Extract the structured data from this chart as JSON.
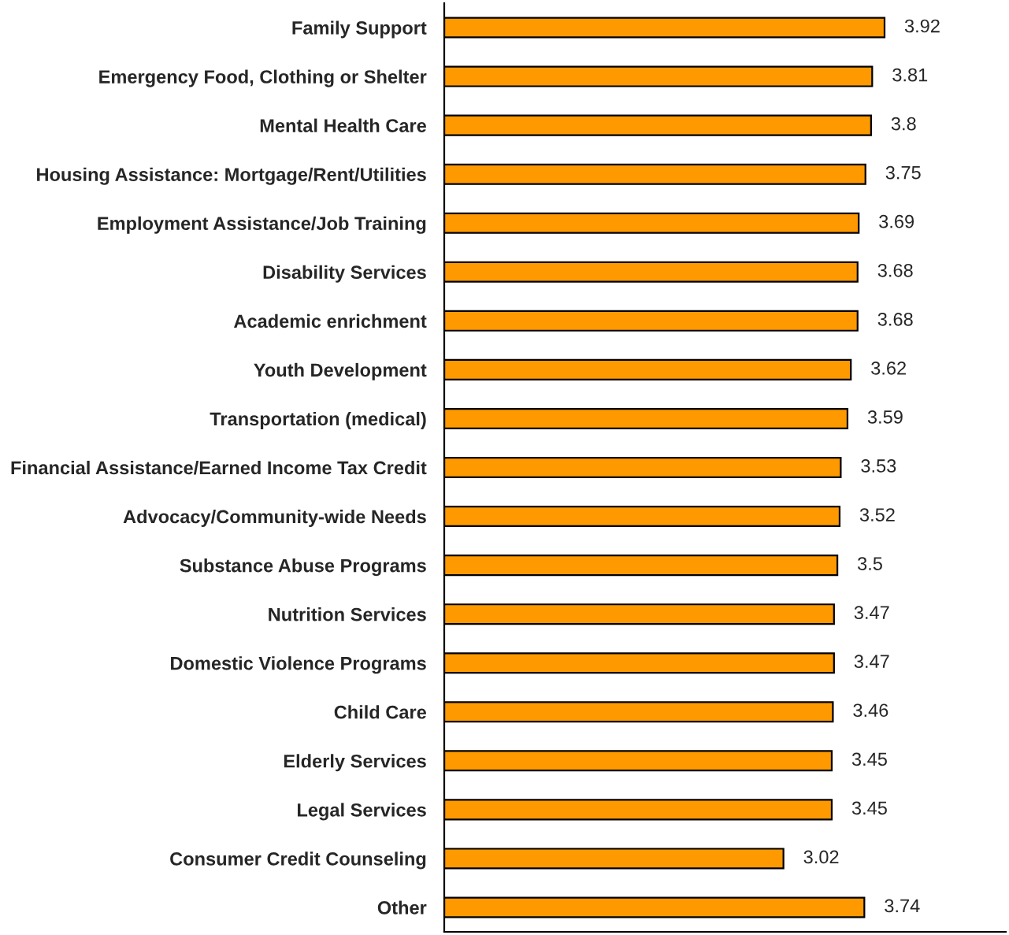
{
  "chart_data": {
    "type": "bar",
    "orientation": "horizontal",
    "categories": [
      "Family Support",
      "Emergency Food, Clothing or Shelter",
      "Mental Health Care",
      "Housing Assistance: Mortgage/Rent/Utilities",
      "Employment Assistance/Job Training",
      "Disability Services",
      "Academic enrichment",
      "Youth Development",
      "Transportation (medical)",
      "Financial Assistance/Earned Income Tax Credit",
      "Advocacy/Community-wide Needs",
      "Substance Abuse Programs",
      "Nutrition Services",
      "Domestic Violence Programs",
      "Child Care",
      "Elderly Services",
      "Legal Services",
      "Consumer Credit Counseling",
      "Other"
    ],
    "values": [
      3.92,
      3.81,
      3.8,
      3.75,
      3.69,
      3.68,
      3.68,
      3.62,
      3.59,
      3.53,
      3.52,
      3.5,
      3.47,
      3.47,
      3.46,
      3.45,
      3.45,
      3.02,
      3.74
    ],
    "color": "#ff9900",
    "xlim": [
      0,
      5
    ],
    "tick_labels": "y",
    "data_labels": true,
    "grid": false
  }
}
